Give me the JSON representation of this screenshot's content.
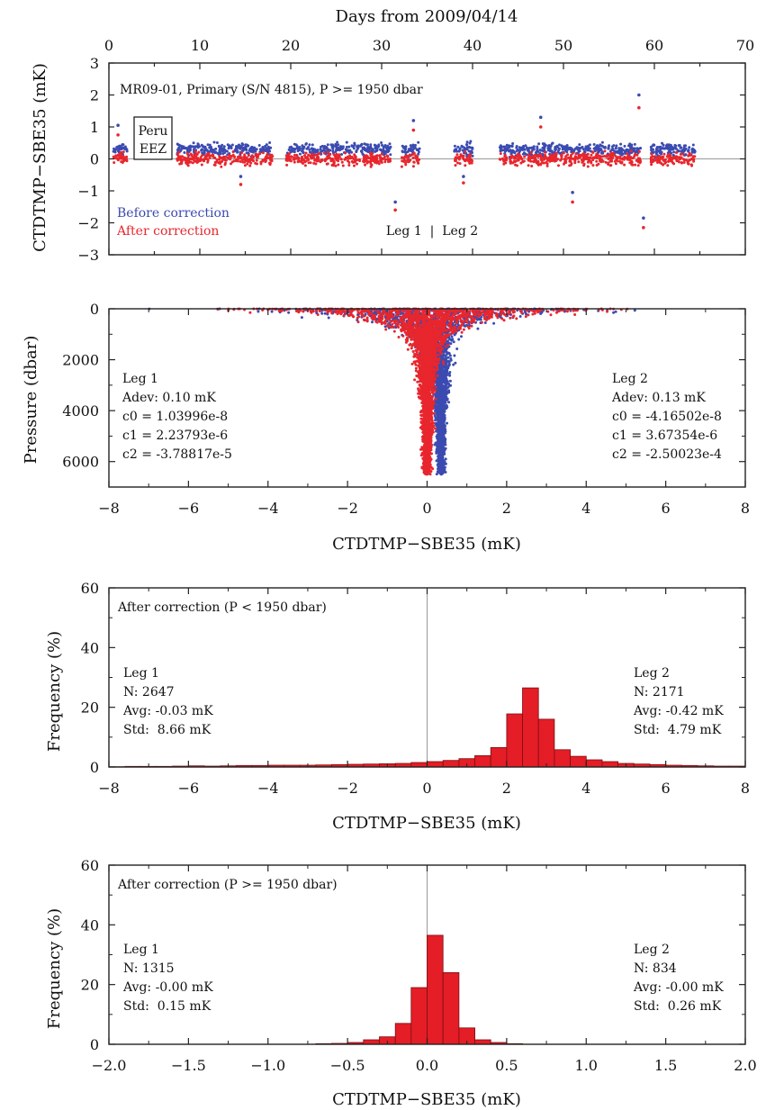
{
  "colors": {
    "before": "#3b4bb0",
    "after": "#e8262d",
    "bar_fill": "#e41d26",
    "bar_edge": "#7a0e12",
    "zero_line": "#999999"
  },
  "chart_data": [
    {
      "type": "scatter",
      "top_axis": {
        "label": "Days from 2009/04/14",
        "range": [
          0,
          70
        ],
        "ticks": [
          "0",
          "10",
          "20",
          "30",
          "40",
          "50",
          "60",
          "70"
        ]
      },
      "ylabel": "CTDTMP−SBE35 (mK)",
      "ylim": [
        -3,
        3
      ],
      "yticks": [
        "3",
        "2",
        "1",
        "0",
        "−1",
        "−2",
        "−3"
      ],
      "title": "MR09-01, Primary (S/N 4815), P >= 1950 dbar",
      "eez_box": [
        "Peru",
        "EEZ"
      ],
      "legend": {
        "before": "Before correction",
        "after": "After correction"
      },
      "leg_label": "Leg 1  |  Leg 2",
      "station_segments_days": [
        [
          0.5,
          2
        ],
        [
          7.5,
          18
        ],
        [
          19.5,
          31
        ],
        [
          32.2,
          34.2
        ],
        [
          38,
          40
        ],
        [
          43,
          58.5
        ],
        [
          59.5,
          64.5
        ]
      ],
      "series": [
        {
          "name": "Before correction",
          "mean_mK": 0.3,
          "spread_mK": 0.16
        },
        {
          "name": "After correction",
          "mean_mK": 0.0,
          "spread_mK": 0.16
        }
      ],
      "outliers": [
        {
          "day": 1,
          "before": 1.05,
          "after": 0.75
        },
        {
          "day": 14.5,
          "before": -0.55,
          "after": -0.8
        },
        {
          "day": 31.5,
          "before": -1.35,
          "after": -1.6
        },
        {
          "day": 33.5,
          "before": 1.2,
          "after": 0.9
        },
        {
          "day": 39,
          "before": -0.55,
          "after": -0.75
        },
        {
          "day": 47.5,
          "before": 1.3,
          "after": 1.0
        },
        {
          "day": 51,
          "before": -1.05,
          "after": -1.35
        },
        {
          "day": 58.3,
          "before": 2.0,
          "after": 1.6
        },
        {
          "day": 58.8,
          "before": -1.85,
          "after": -2.15
        }
      ]
    },
    {
      "type": "scatter",
      "xlabel": "CTDTMP−SBE35 (mK)",
      "ylabel": "Pressure (dbar)",
      "xlim": [
        -8,
        8
      ],
      "ylim": [
        0,
        7000
      ],
      "xticks": [
        "−8",
        "−6",
        "−4",
        "−2",
        "0",
        "2",
        "4",
        "6",
        "8"
      ],
      "yticks": [
        "0",
        "2000",
        "4000",
        "6000"
      ],
      "max_pressure_dbar": 6500,
      "leg1": [
        "Leg 1",
        "Adev: 0.10 mK",
        "c0 = 1.03996e-8",
        "c1 = 2.23793e-6",
        "c2 = -3.78817e-5"
      ],
      "leg2": [
        "Leg 2",
        "Adev: 0.13 mK",
        "c0 = -4.16502e-8",
        "c1 = 3.67354e-6",
        "c2 = -2.50023e-4"
      ]
    },
    {
      "type": "bar",
      "xlabel": "CTDTMP−SBE35 (mK)",
      "ylabel": "Frequency (%)",
      "xlim": [
        -8,
        8
      ],
      "ylim": [
        0,
        60
      ],
      "xticks": [
        "−8",
        "−6",
        "−4",
        "−2",
        "0",
        "2",
        "4",
        "6",
        "8"
      ],
      "yticks": [
        "0",
        "20",
        "40",
        "60"
      ],
      "title": "After correction (P < 1950 dbar)",
      "leg1": [
        "Leg 1",
        "N: 2647",
        "Avg: -0.03 mK",
        "Std:  8.66 mK"
      ],
      "leg2": [
        "Leg 2",
        "N: 2171",
        "Avg: -0.42 mK",
        "Std:  4.79 mK"
      ],
      "bin_width": 0.4,
      "bin_start": -8,
      "values": [
        0.1,
        0.2,
        0.2,
        0.2,
        0.3,
        0.4,
        0.3,
        0.4,
        0.5,
        0.5,
        0.6,
        0.6,
        0.6,
        0.7,
        0.8,
        0.9,
        1.0,
        1.1,
        1.2,
        1.5,
        1.8,
        2.2,
        2.8,
        3.8,
        6.5,
        17.8,
        26.5,
        16.0,
        5.8,
        3.6,
        2.4,
        1.8,
        1.2,
        1.0,
        0.8,
        0.6,
        0.5,
        0.4,
        0.3,
        0.3
      ]
    },
    {
      "type": "bar",
      "xlabel": "CTDTMP−SBE35 (mK)",
      "ylabel": "Frequency (%)",
      "xlim": [
        -2,
        2
      ],
      "ylim": [
        0,
        60
      ],
      "xticks": [
        "−2.0",
        "−1.5",
        "−1.0",
        "−0.5",
        "0.0",
        "0.5",
        "1.0",
        "1.5",
        "2.0"
      ],
      "yticks": [
        "0",
        "20",
        "40",
        "60"
      ],
      "title": "After correction (P >= 1950 dbar)",
      "leg1": [
        "Leg 1",
        "N: 1315",
        "Avg: -0.00 mK",
        "Std:  0.15 mK"
      ],
      "leg2": [
        "Leg 2",
        "N: 834",
        "Avg: -0.00 mK",
        "Std:  0.26 mK"
      ],
      "bin_width": 0.1,
      "bin_start": -0.7,
      "values": [
        0.2,
        0.3,
        0.6,
        1.5,
        2.5,
        7.0,
        19.0,
        36.5,
        24.0,
        5.5,
        1.5,
        0.6,
        0.2
      ]
    }
  ]
}
